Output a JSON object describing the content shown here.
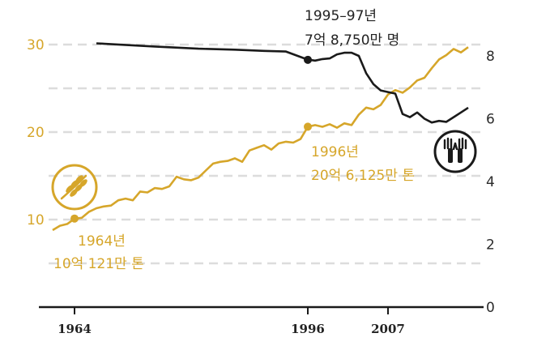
{
  "chart_data": {
    "type": "line",
    "x_ticks": [
      {
        "year": 1964,
        "label": "1964"
      },
      {
        "year": 1996,
        "label": "1996"
      },
      {
        "year": 2007,
        "label": "2007"
      }
    ],
    "left_axis": {
      "ticks": [
        10,
        20,
        30
      ],
      "ylim": [
        0,
        35
      ],
      "color": "#d6a62a"
    },
    "right_axis": {
      "ticks": [
        0,
        2,
        4,
        6,
        8
      ],
      "ylim": [
        0,
        8.6
      ],
      "color": "#2b2b2b"
    },
    "grid": true,
    "series": [
      {
        "axis": "left",
        "color": "#d6a62a",
        "icon": "wheat-icon",
        "x": [
          1961,
          1962,
          1963,
          1964,
          1965,
          1966,
          1967,
          1968,
          1969,
          1970,
          1971,
          1972,
          1973,
          1974,
          1975,
          1976,
          1977,
          1978,
          1979,
          1980,
          1981,
          1982,
          1983,
          1984,
          1985,
          1986,
          1987,
          1988,
          1989,
          1990,
          1991,
          1992,
          1993,
          1994,
          1995,
          1996,
          1997,
          1998,
          1999,
          2000,
          2001,
          2002,
          2003,
          2004,
          2005,
          2006,
          2007,
          2008,
          2009,
          2010,
          2011,
          2012,
          2013,
          2014,
          2015,
          2016,
          2017,
          2018
        ],
        "values": [
          8.8,
          9.3,
          9.5,
          10.1,
          10.2,
          10.9,
          11.3,
          11.5,
          11.6,
          12.2,
          12.4,
          12.2,
          13.2,
          13.1,
          13.6,
          13.5,
          13.8,
          14.9,
          14.6,
          14.5,
          14.8,
          15.6,
          16.4,
          16.6,
          16.7,
          17.0,
          16.6,
          17.9,
          18.2,
          18.5,
          18.0,
          18.7,
          18.9,
          18.8,
          19.2,
          20.6,
          20.8,
          20.6,
          20.9,
          20.5,
          21.0,
          20.8,
          22.0,
          22.8,
          22.6,
          23.1,
          24.3,
          24.8,
          24.5,
          25.1,
          25.9,
          26.2,
          27.3,
          28.3,
          28.8,
          29.5,
          29.1,
          29.7
        ]
      },
      {
        "axis": "right",
        "color": "#1a1a1a",
        "icon": "raised-hands-icon",
        "x": [
          1967,
          1975,
          1981,
          1986,
          1990,
          1993,
          1996,
          1997,
          1998,
          1999,
          2000,
          2001,
          2002,
          2003,
          2004,
          2005,
          2006,
          2007,
          2008,
          2009,
          2010,
          2011,
          2012,
          2013,
          2014,
          2015,
          2016,
          2017,
          2018
        ],
        "values": [
          8.4,
          8.3,
          8.23,
          8.2,
          8.16,
          8.14,
          7.88,
          7.85,
          7.9,
          7.92,
          8.05,
          8.1,
          8.1,
          8.0,
          7.45,
          7.1,
          6.9,
          6.85,
          6.8,
          6.15,
          6.05,
          6.2,
          6.0,
          5.88,
          5.93,
          5.9,
          6.05,
          6.2,
          6.35
        ]
      }
    ],
    "annotations": [
      {
        "text_line1": "1964년",
        "text_line2": "10억 121만 톤",
        "year": 1964,
        "value": 10.121,
        "axis": "left"
      },
      {
        "text_line1": "1996년",
        "text_line2": "20억 6,125만 톤",
        "year": 1996,
        "value": 20.6125,
        "axis": "left"
      },
      {
        "text_line1": "1995–97년",
        "text_line2": "7억 8,750만 명",
        "year": 1996,
        "value": 7.875,
        "axis": "right"
      }
    ]
  }
}
